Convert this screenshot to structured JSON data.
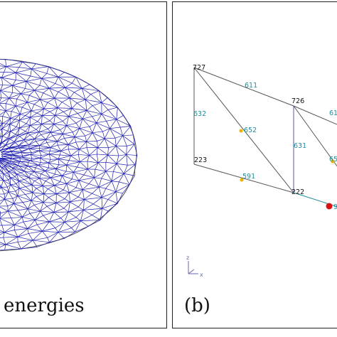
{
  "panel_a": {
    "caption": "energies",
    "mesh_color": "#1f1fb0"
  },
  "panel_b": {
    "caption": "(b)",
    "nodes": [
      "727",
      "726",
      "223",
      "222"
    ],
    "edges": [
      "611",
      "632",
      "652",
      "631",
      "591",
      "61",
      "65",
      "9"
    ],
    "axis": {
      "z": "z",
      "x": "x"
    },
    "colors": {
      "edge_label": "#1e8f9c",
      "midpoint": "#f0b000",
      "highlight": "#dd1111"
    }
  }
}
